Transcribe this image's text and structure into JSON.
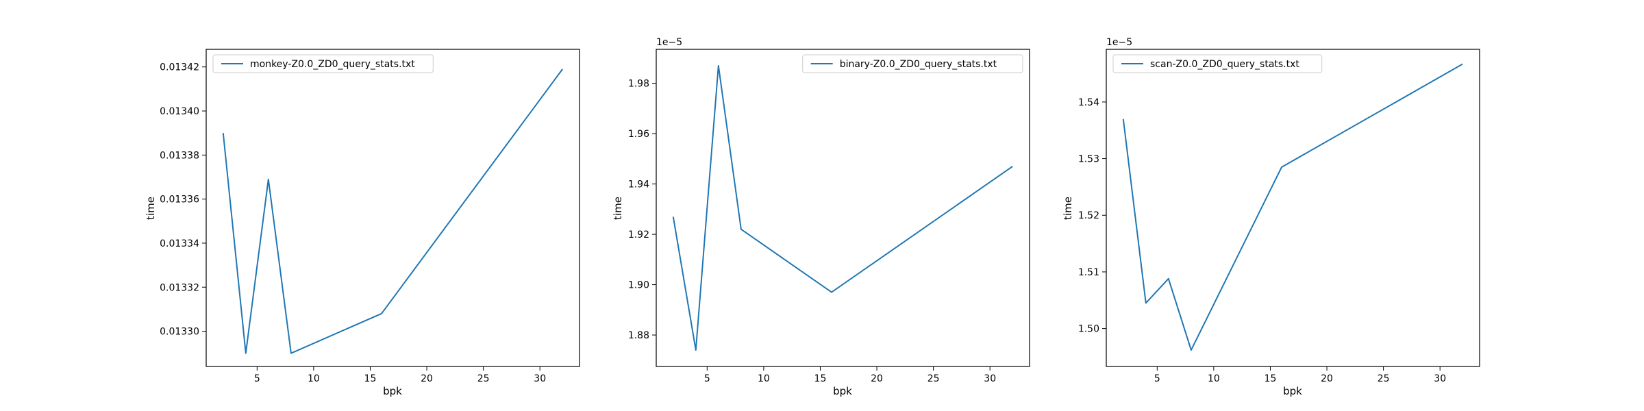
{
  "chart_data": [
    {
      "type": "line",
      "xlabel": "bpk",
      "ylabel": "time",
      "offset_label": "",
      "legend_position": "upper left",
      "xlim": [
        0.5,
        33.5
      ],
      "ylim": [
        0.013284,
        0.013428
      ],
      "xticks": [
        5,
        10,
        15,
        20,
        25,
        30
      ],
      "yticks": [
        0.0133,
        0.01332,
        0.01334,
        0.01336,
        0.01338,
        0.0134,
        0.01342
      ],
      "ytick_labels": [
        "0.01330",
        "0.01332",
        "0.01334",
        "0.01336",
        "0.01338",
        "0.01340",
        "0.01342"
      ],
      "grid": false,
      "series": [
        {
          "name": "monkey-Z0.0_ZD0_query_stats.txt",
          "color": "#1f77b4",
          "x": [
            2,
            4,
            6,
            8,
            16,
            32
          ],
          "y": [
            0.01339,
            0.01329,
            0.013369,
            0.01329,
            0.013308,
            0.013419
          ]
        }
      ]
    },
    {
      "type": "line",
      "xlabel": "bpk",
      "ylabel": "time",
      "offset_label": "1e−5",
      "legend_position": "upper right",
      "xlim": [
        0.5,
        33.5
      ],
      "ylim": [
        1.8675,
        1.9935
      ],
      "xticks": [
        5,
        10,
        15,
        20,
        25,
        30
      ],
      "yticks": [
        1.88,
        1.9,
        1.92,
        1.94,
        1.96,
        1.98
      ],
      "ytick_labels": [
        "1.88",
        "1.90",
        "1.92",
        "1.94",
        "1.96",
        "1.98"
      ],
      "grid": false,
      "series": [
        {
          "name": "binary-Z0.0_ZD0_query_stats.txt",
          "color": "#1f77b4",
          "x": [
            2,
            4,
            6,
            8,
            16,
            32
          ],
          "y": [
            1.927,
            1.874,
            1.987,
            1.922,
            1.897,
            1.947
          ]
        }
      ]
    },
    {
      "type": "line",
      "xlabel": "bpk",
      "ylabel": "time",
      "offset_label": "1e−5",
      "legend_position": "upper left",
      "xlim": [
        0.5,
        33.5
      ],
      "ylim": [
        1.4933,
        1.5493
      ],
      "xticks": [
        5,
        10,
        15,
        20,
        25,
        30
      ],
      "yticks": [
        1.5,
        1.51,
        1.52,
        1.53,
        1.54
      ],
      "ytick_labels": [
        "1.50",
        "1.51",
        "1.52",
        "1.53",
        "1.54"
      ],
      "grid": false,
      "series": [
        {
          "name": "scan-Z0.0_ZD0_query_stats.txt",
          "color": "#1f77b4",
          "x": [
            2,
            4,
            6,
            8,
            16,
            32
          ],
          "y": [
            1.537,
            1.5045,
            1.5088,
            1.4962,
            1.5285,
            1.5467
          ]
        }
      ]
    }
  ]
}
